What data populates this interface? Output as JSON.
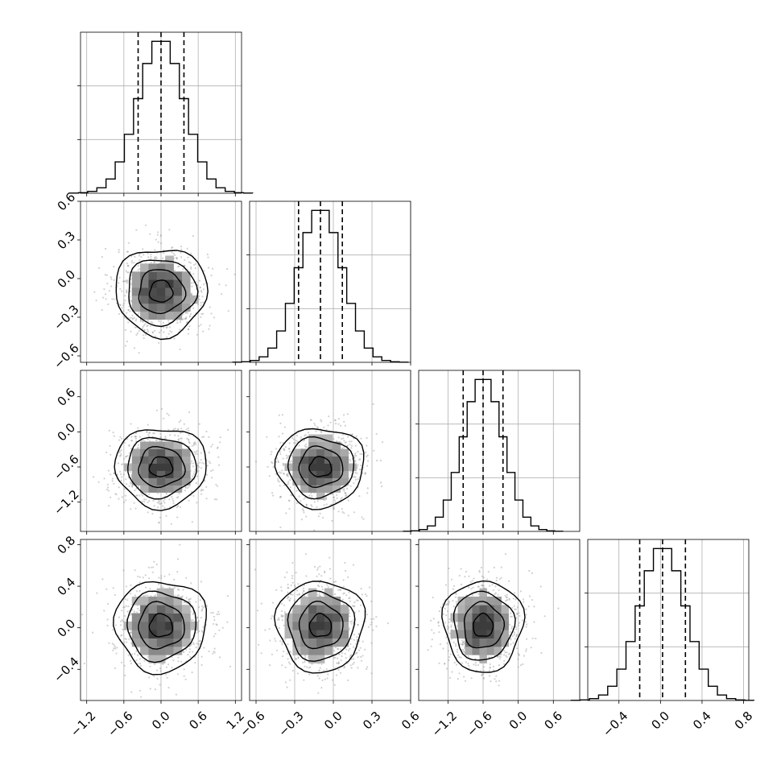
{
  "chart_data": {
    "type": "corner",
    "title": "",
    "parameters": 4,
    "quantiles": [
      0.16,
      0.5,
      0.84
    ],
    "grid": true,
    "ranges": [
      [
        -1.3,
        1.3
      ],
      [
        -0.65,
        0.6
      ],
      [
        -1.7,
        1.05
      ],
      [
        -0.7,
        0.85
      ]
    ],
    "tick_labels": [
      [
        "−1.2",
        "−0.6",
        "0.0",
        "0.6",
        "1.2"
      ],
      [
        "−0.6",
        "−0.3",
        "0.0",
        "0.3",
        "0.6"
      ],
      [
        "−1.2",
        "−0.6",
        "0.0",
        "0.6"
      ],
      [
        "−0.4",
        "0.0",
        "0.4",
        "0.8"
      ]
    ],
    "tick_values": [
      [
        -1.2,
        -0.6,
        0.0,
        0.6,
        1.2
      ],
      [
        -0.6,
        -0.3,
        0.0,
        0.3,
        0.6
      ],
      [
        -1.2,
        -0.6,
        0.0,
        0.6
      ],
      [
        -0.4,
        0.0,
        0.4,
        0.8
      ]
    ],
    "marginals": [
      {
        "mean": 0.0,
        "sd": 0.37,
        "quantile_values": [
          -0.37,
          0.0,
          0.37
        ]
      },
      {
        "mean": -0.1,
        "sd": 0.17,
        "quantile_values": [
          -0.27,
          -0.1,
          0.07
        ]
      },
      {
        "mean": -0.6,
        "sd": 0.34,
        "quantile_values": [
          -0.94,
          -0.6,
          -0.26
        ]
      },
      {
        "mean": 0.02,
        "sd": 0.22,
        "quantile_values": [
          -0.2,
          0.02,
          0.24
        ]
      }
    ],
    "correlation": "none",
    "colors": {
      "points": "#999999",
      "density_dark": "#3d3d3d",
      "line": "#000000",
      "grid": "#b0b0b0"
    }
  }
}
